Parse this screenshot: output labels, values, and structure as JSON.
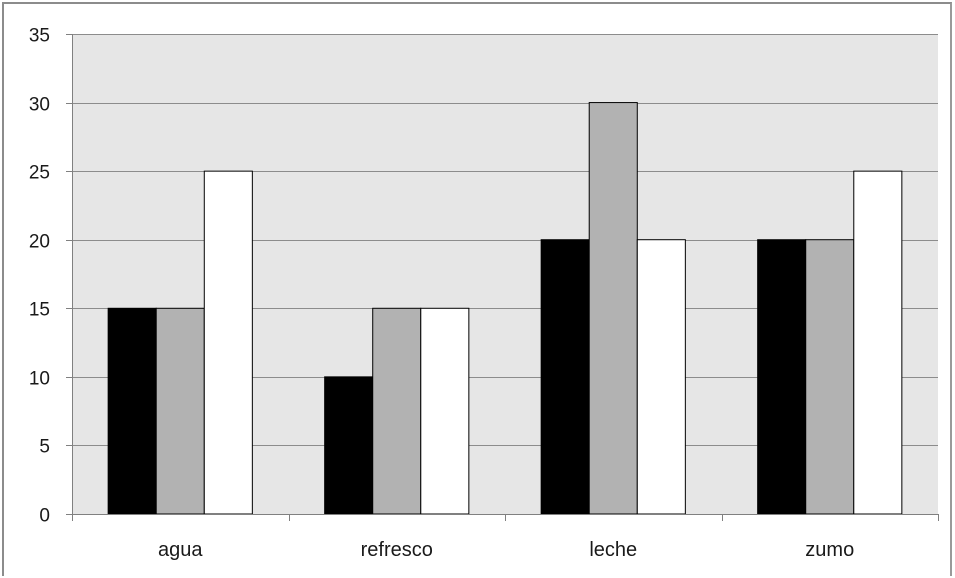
{
  "chart_data": {
    "type": "bar",
    "categories": [
      "agua",
      "refresco",
      "leche",
      "zumo"
    ],
    "series": [
      {
        "values": [
          15,
          10,
          20,
          20
        ],
        "color": "#000000"
      },
      {
        "values": [
          15,
          15,
          30,
          20
        ],
        "color": "#b2b2b2"
      },
      {
        "values": [
          25,
          15,
          20,
          25
        ],
        "color": "#ffffff"
      }
    ],
    "ylim": [
      0,
      35
    ],
    "yticks": [
      0,
      5,
      10,
      15,
      20,
      25,
      30,
      35
    ],
    "grid": true,
    "plot_background": "#e6e6e6",
    "gridline_color": "#8c8c8c",
    "legend": "none"
  }
}
